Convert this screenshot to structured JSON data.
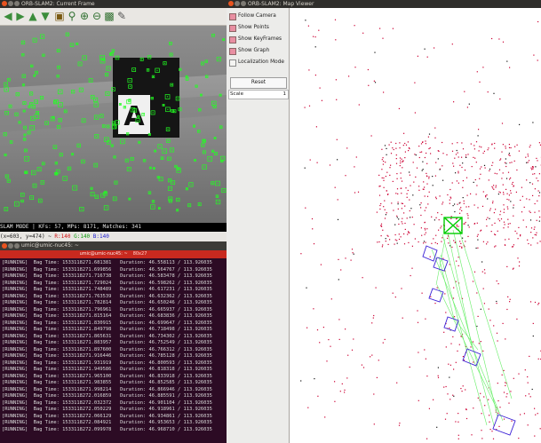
{
  "colors": {
    "feature_green": "#22ff22",
    "map_point_red": "#cc0033",
    "map_point_dark": "#111111",
    "keyframe_blue": "#3a1fd6",
    "current_frame_green": "#00cc00",
    "graph_green": "#66ee66",
    "terminal_bg": "#2c0b24",
    "terminal_tab_red": "#c8291f",
    "close_button": "#e95420"
  },
  "current_frame": {
    "title": "ORB-SLAM2: Current Frame",
    "toolbar_icons": [
      "arrow-left-icon",
      "arrow-right-icon",
      "arrow-up-icon",
      "arrow-down-icon",
      "save-icon",
      "zoom-fit-icon",
      "zoom-in-icon",
      "zoom-out-icon",
      "save-image-icon",
      "brush-icon"
    ],
    "status": "SLAM MODE |  KFs: 57, MPs: 8171, Matches: 341",
    "coord_prefix": "(x=603, y=474) ~ ",
    "coord_r": "R:140",
    "coord_g": "G:140",
    "coord_b": "B:140",
    "marker_letter": "A"
  },
  "terminal": {
    "title": "umic@umic-nuc45: ~",
    "tab_title": "umic@umic-nuc45: ~",
    "tab_size": "80x27",
    "lines": [
      "[RUNNING]  Bag Time: 1533118271.681381   Duration: 46.558113 / 113.926035",
      "[RUNNING]  Bag Time: 1533118271.699856   Duration: 46.564767 / 113.926035",
      "[RUNNING]  Bag Time: 1533118271.716738   Duration: 46.583478 / 113.926035",
      "[RUNNING]  Bag Time: 1533118271.729024   Duration: 46.598262 / 113.926035",
      "[RUNNING]  Bag Time: 1533118271.748489   Duration: 46.617231 / 113.926035",
      "[RUNNING]  Bag Time: 1533118271.763539   Duration: 46.632362 / 113.926035",
      "[RUNNING]  Bag Time: 1533118271.782814   Duration: 46.650246 / 113.926035",
      "[RUNNING]  Bag Time: 1533118271.796961   Duration: 46.665937 / 113.926035",
      "[RUNNING]  Bag Time: 1533118271.815164   Duration: 46.683836 / 113.926035",
      "[RUNNING]  Bag Time: 1533118271.830915   Duration: 46.699647 / 113.926035",
      "[RUNNING]  Bag Time: 1533118271.849798   Duration: 46.718498 / 113.926035",
      "[RUNNING]  Bag Time: 1533118271.865631   Duration: 46.734302 / 113.926035",
      "[RUNNING]  Bag Time: 1533118271.883957   Duration: 46.752549 / 113.926035",
      "[RUNNING]  Bag Time: 1533118271.897600   Duration: 46.766312 / 113.926035",
      "[RUNNING]  Bag Time: 1533118271.916446   Duration: 46.785128 / 113.926035",
      "[RUNNING]  Bag Time: 1533118271.931919   Duration: 46.800593 / 113.926035",
      "[RUNNING]  Bag Time: 1533118271.949586   Duration: 46.818318 / 113.926035",
      "[RUNNING]  Bag Time: 1533118271.965100   Duration: 46.833918 / 113.926035",
      "[RUNNING]  Bag Time: 1533118271.983855   Duration: 46.852585 / 113.926035",
      "[RUNNING]  Bag Time: 1533118271.998214   Duration: 46.866946 / 113.926035",
      "[RUNNING]  Bag Time: 1533118272.016859   Duration: 46.885591 / 113.926035",
      "[RUNNING]  Bag Time: 1533118272.032372   Duration: 46.901104 / 113.926035",
      "[RUNNING]  Bag Time: 1533118272.050229   Duration: 46.918961 / 113.926035",
      "[RUNNING]  Bag Time: 1533118272.066129   Duration: 46.934861 / 113.926035",
      "[RUNNING]  Bag Time: 1533118272.084921   Duration: 46.953653 / 113.926035",
      "[RUNNING]  Bag Time: 1533118272.099978   Duration: 46.968710 / 113.926035"
    ]
  },
  "map_viewer": {
    "title": "ORB-SLAM2: Map Viewer",
    "checkboxes": [
      {
        "label": "Follow Camera",
        "checked": true
      },
      {
        "label": "Show Points",
        "checked": true
      },
      {
        "label": "Show KeyFrames",
        "checked": true
      },
      {
        "label": "Show Graph",
        "checked": true
      },
      {
        "label": "Localization Mode",
        "checked": false
      }
    ],
    "reset_label": "Reset",
    "scale_label": "Scale",
    "scale_value": "1"
  }
}
